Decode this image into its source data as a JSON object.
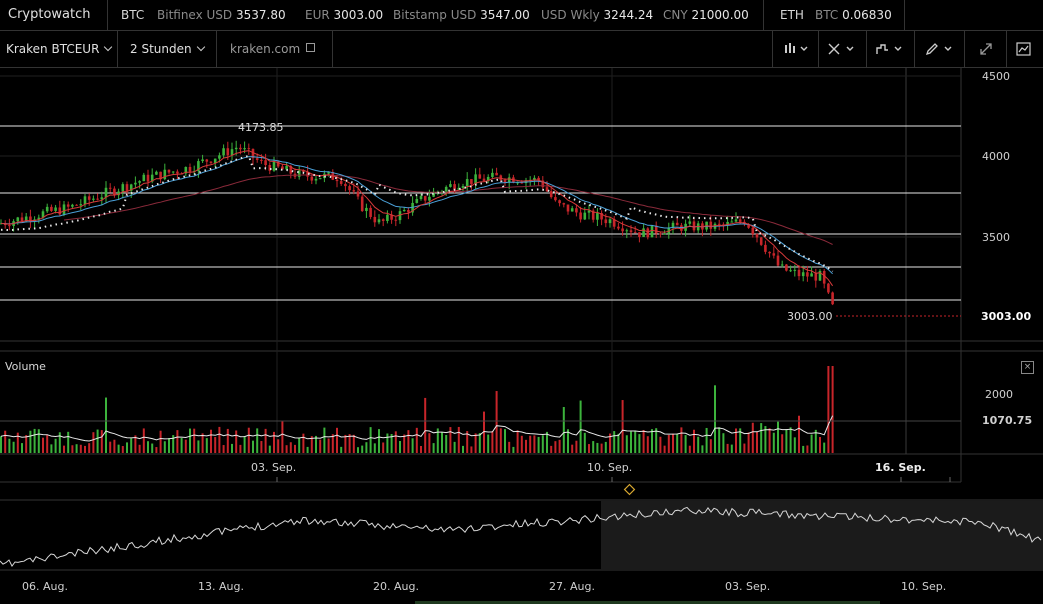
{
  "topbar": {
    "brand": "Cryptowatch",
    "btc_label": "BTC",
    "tickers": [
      {
        "label": "Bitfinex USD",
        "value": "3537.80"
      },
      {
        "label": "EUR",
        "value": "3003.00"
      },
      {
        "label": "Bitstamp USD",
        "value": "3547.00"
      },
      {
        "label": "USD Wkly",
        "value": "3244.24"
      },
      {
        "label": "CNY",
        "value": "21000.00"
      }
    ],
    "eth_label": "ETH",
    "eth_ticker": {
      "label": "BTC",
      "value": "0.06830"
    }
  },
  "toolbar": {
    "market": "Kraken BTCEUR",
    "interval": "2 Stunden",
    "exchange_link": "kraken.com",
    "icons": [
      "candle-chart-icon",
      "crosshair-icon",
      "indicator-icon",
      "pencil-icon",
      "expand-icon",
      "chart-type-icon"
    ]
  },
  "price_chart": {
    "y_ticks": [
      "4500",
      "4000",
      "3500",
      "3003.00"
    ],
    "high_label": "4173.85",
    "last_price_label": "3003.00",
    "colors": {
      "up": "#3cb33c",
      "down": "#c8252a",
      "ema_fast": "#d73a3a",
      "ema_slow": "#4aa0d8",
      "sma": "#8a2a3a"
    }
  },
  "volume": {
    "title": "Volume",
    "close_glyph": "×",
    "y_ticks": [
      "2000",
      "1070.75"
    ]
  },
  "time_axis": {
    "labels": [
      "03. Sep.",
      "10. Sep.",
      "16. Sep."
    ]
  },
  "navigator": {
    "labels": [
      "06. Aug.",
      "13. Aug.",
      "20. Aug.",
      "27. Aug.",
      "03. Sep.",
      "10. Sep."
    ]
  }
}
